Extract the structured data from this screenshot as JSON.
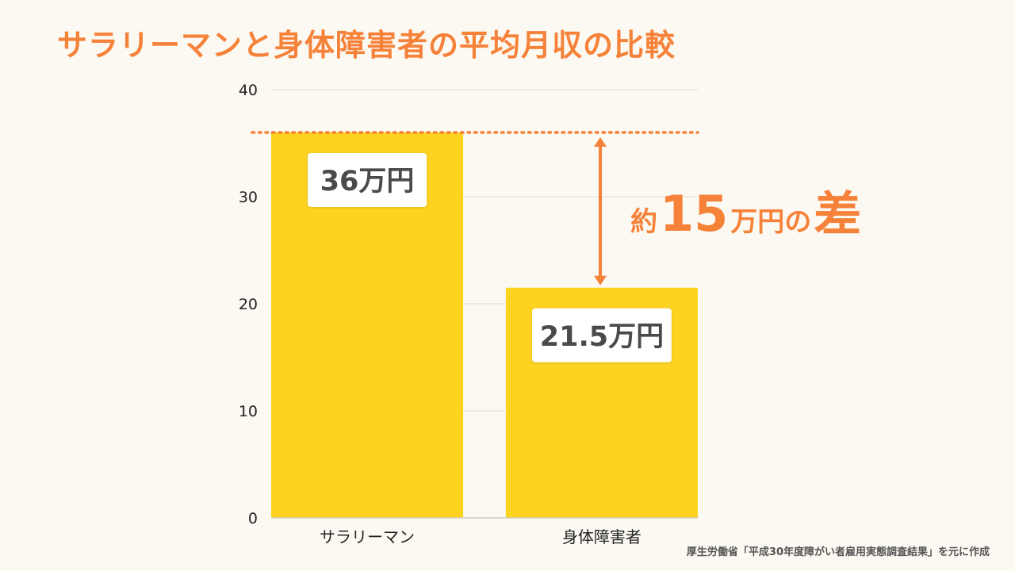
{
  "title": "サラリーマンと身体障害者の平均月収の比較",
  "source": "厚生労働省「平成30年度障がい者雇用実態調査結果」を元に作成",
  "colors": {
    "title": "#f6823a",
    "bar": "#fdd320",
    "accent": "#f6823a",
    "label_text": "#4a4a4a",
    "axis_text": "#222222",
    "grid": "#dedbd0",
    "background": "#fbf9f1"
  },
  "chart_data": {
    "type": "bar",
    "categories": [
      "サラリーマン",
      "身体障害者"
    ],
    "values": [
      36,
      21.5
    ],
    "data_labels": [
      "36万円",
      "21.5万円"
    ],
    "ylim": [
      0,
      40
    ],
    "yticks": [
      0,
      10,
      20,
      30,
      40
    ],
    "grid": true,
    "reference_line": {
      "value": 36,
      "style": "dotted"
    },
    "difference_annotation": {
      "prefix": "約",
      "number": "15",
      "suffix": "万円の",
      "emphasis": "差"
    }
  }
}
